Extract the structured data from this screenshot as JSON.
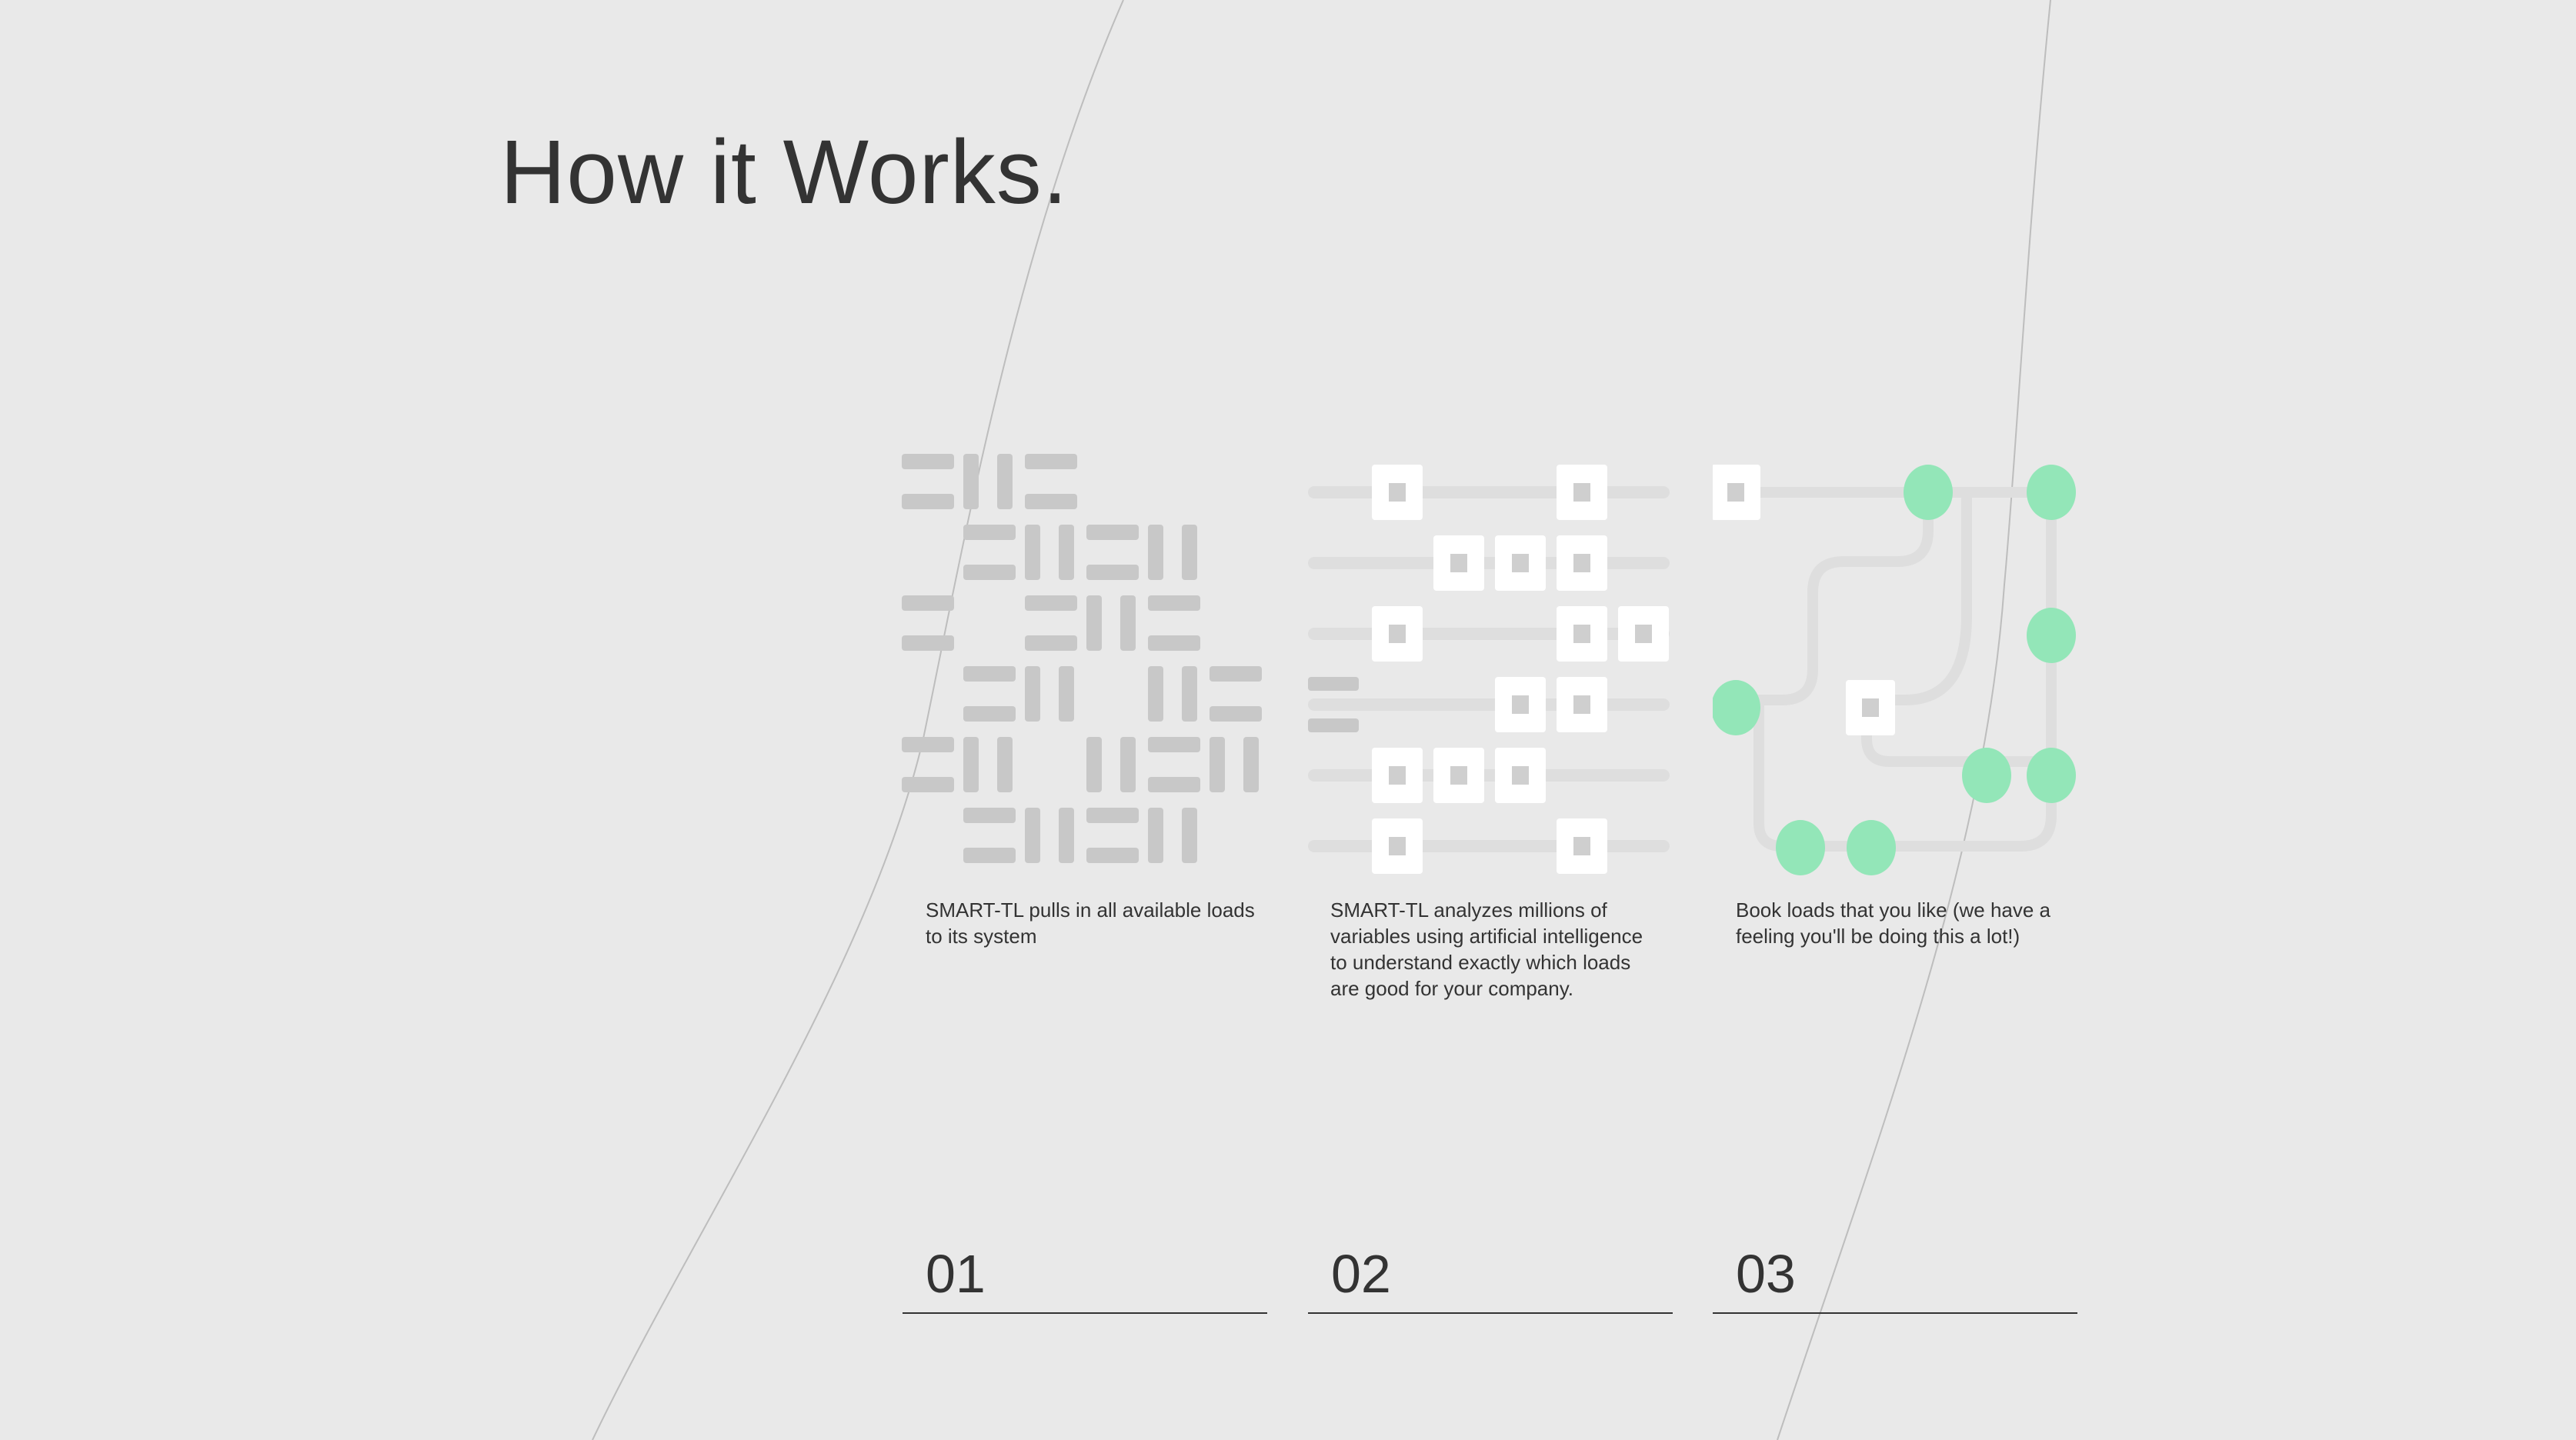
{
  "page": {
    "title": "How it Works."
  },
  "colors": {
    "background": "#e9e9e9",
    "text": "#333333",
    "block_gray": "#c8c8c8",
    "track_gray": "#dedede",
    "node_white": "#ffffff",
    "node_green": "#93e6b8"
  },
  "steps": [
    {
      "number": "01",
      "description": "SMART-TL pulls in all available loads to its system",
      "icon": "scattered-blocks-icon"
    },
    {
      "number": "02",
      "description": "SMART-TL analyzes millions of variables using artificial intelligence to understand exactly which loads are good for your company.",
      "icon": "analysis-grid-icon"
    },
    {
      "number": "03",
      "description": "Book loads that you like (we have a feeling you'll be doing this a lot!)",
      "icon": "route-network-icon"
    }
  ]
}
